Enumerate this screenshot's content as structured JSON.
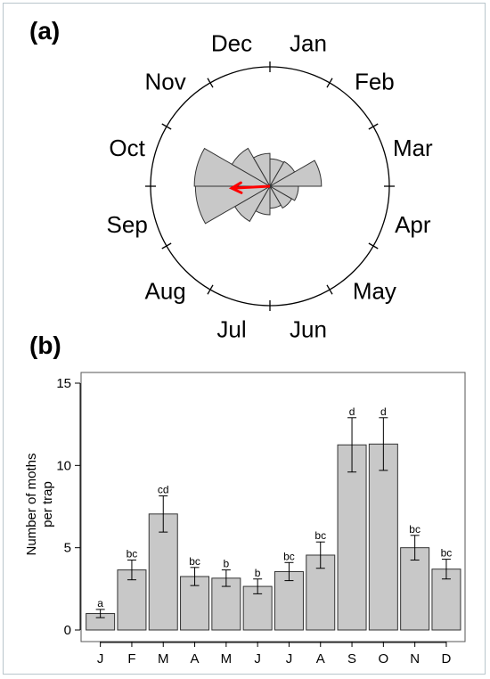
{
  "chart_data": [
    {
      "type": "rose",
      "panel_label": "(a)",
      "months": [
        "Jan",
        "Feb",
        "Mar",
        "Apr",
        "May",
        "Jun",
        "Jul",
        "Aug",
        "Sep",
        "Oct",
        "Nov",
        "Dec"
      ],
      "relative_values": [
        2.5,
        2.6,
        4.7,
        2.6,
        2.3,
        2.0,
        2.6,
        3.7,
        6.8,
        6.9,
        4.0,
        3.0
      ],
      "mean_vector_month": "Sep",
      "colors": {
        "bars": "#c8c8c8",
        "outline": "#333333",
        "arrow": "#ff0000"
      }
    },
    {
      "type": "bar",
      "panel_label": "(b)",
      "categories": [
        "J",
        "F",
        "M",
        "A",
        "M",
        "J",
        "J",
        "A",
        "S",
        "O",
        "N",
        "D"
      ],
      "values": [
        1.0,
        3.65,
        7.05,
        3.25,
        3.15,
        2.65,
        3.55,
        4.55,
        11.25,
        11.3,
        5.0,
        3.7
      ],
      "errors": [
        0.25,
        0.6,
        1.1,
        0.55,
        0.5,
        0.45,
        0.55,
        0.8,
        1.65,
        1.6,
        0.75,
        0.6
      ],
      "significance": [
        "a",
        "bc",
        "cd",
        "bc",
        "b",
        "b",
        "bc",
        "bc",
        "d",
        "d",
        "bc",
        "bc"
      ],
      "ylabel_lines": [
        "Number of moths",
        "per trap"
      ],
      "ylim": [
        0,
        15.8
      ],
      "yticks": [
        0,
        5,
        10,
        15
      ],
      "colors": {
        "bars": "#c8c8c8",
        "outline": "#333333"
      }
    }
  ]
}
